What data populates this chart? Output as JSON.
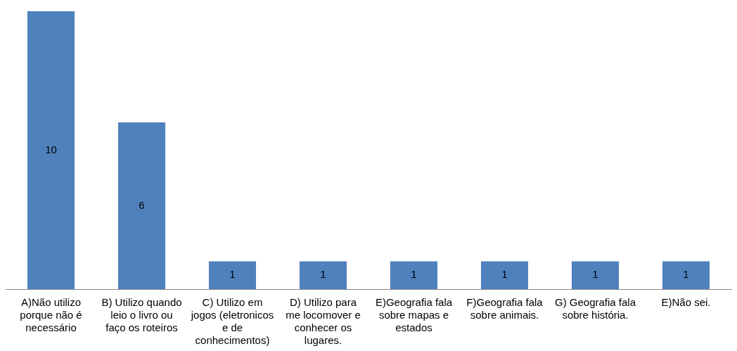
{
  "chart_data": {
    "type": "bar",
    "categories": [
      "A)Não utilizo porque não é necessário",
      "B) Utilizo quando leio o livro ou faço os roteiros",
      "C) Utilizo em jogos (eletronicos e de conhecimentos)",
      "D) Utilizo para me locomover e conhecer os lugares.",
      "E)Geografia fala sobre mapas e estados",
      "F)Geografia fala sobre animais.",
      "G) Geografia fala sobre história.",
      "E)Não sei."
    ],
    "values": [
      10,
      6,
      1,
      1,
      1,
      1,
      1,
      1
    ],
    "color": "#4f81bd",
    "ylim": [
      0,
      10
    ],
    "data_labels": true,
    "grid": false,
    "legend": false,
    "tick_labels": "x"
  }
}
